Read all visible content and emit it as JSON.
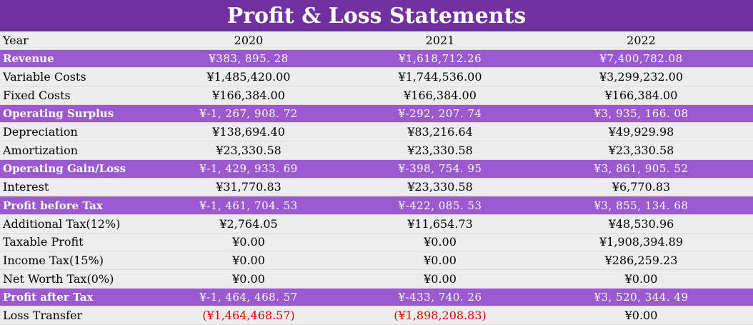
{
  "title": "Profit & Loss Statements",
  "header": {
    "label": "Year",
    "years": [
      "2020",
      "2021",
      "2022"
    ]
  },
  "rows": [
    {
      "label": "Revenue",
      "highlight": true,
      "values": [
        "¥383, 895. 28",
        "¥1,618,712.26",
        "¥7,400,782.08"
      ]
    },
    {
      "label": "Variable Costs",
      "highlight": false,
      "values": [
        "¥1,485,420.00",
        "¥1,744,536.00",
        "¥3,299,232.00"
      ]
    },
    {
      "label": "Fixed Costs",
      "highlight": false,
      "values": [
        "¥166,384.00",
        "¥166,384.00",
        "¥166,384.00"
      ]
    },
    {
      "label": "Operating Surplus",
      "highlight": true,
      "values": [
        "¥-1, 267, 908. 72",
        "¥-292, 207. 74",
        "¥3, 935, 166. 08"
      ]
    },
    {
      "label": "Depreciation",
      "highlight": false,
      "values": [
        "¥138,694.40",
        "¥83,216.64",
        "¥49,929.98"
      ]
    },
    {
      "label": "Amortization",
      "highlight": false,
      "values": [
        "¥23,330.58",
        "¥23,330.58",
        "¥23,330.58"
      ]
    },
    {
      "label": "Operating Gain/Loss",
      "highlight": true,
      "values": [
        "¥-1, 429, 933. 69",
        "¥-398, 754. 95",
        "¥3, 861, 905. 52"
      ]
    },
    {
      "label": "Interest",
      "highlight": false,
      "values": [
        "¥31,770.83",
        "¥23,330.58",
        "¥6,770.83"
      ]
    },
    {
      "label": "Profit before Tax",
      "highlight": true,
      "values": [
        "¥-1, 461, 704. 53",
        "¥-422, 085. 53",
        "¥3, 855, 134. 68"
      ]
    },
    {
      "label": "Additional Tax(12%)",
      "highlight": false,
      "values": [
        "¥2,764.05",
        "¥11,654.73",
        "¥48,530.96"
      ]
    },
    {
      "label": "Taxable Profit",
      "highlight": false,
      "values": [
        "¥0.00",
        "¥0.00",
        "¥1,908,394.89"
      ]
    },
    {
      "label": "Income Tax(15%)",
      "highlight": false,
      "values": [
        "¥0.00",
        "¥0.00",
        "¥286,259.23"
      ]
    },
    {
      "label": "Net Worth Tax(0%)",
      "highlight": false,
      "values": [
        "¥0.00",
        "¥0.00",
        "¥0.00"
      ]
    },
    {
      "label": "Profit after Tax",
      "highlight": true,
      "values": [
        "¥-1, 464, 468. 57",
        "¥-433, 740. 26",
        "¥3, 520, 344. 49"
      ]
    },
    {
      "label": "Loss Transfer",
      "highlight": false,
      "values": [
        "(¥1,464,468.57)",
        "(¥1,898,208.83)",
        "¥0.00"
      ],
      "negative": [
        true,
        true,
        false
      ]
    }
  ],
  "colors": {
    "title_bg": "#7030a0",
    "highlight_bg": "#9b59d0",
    "negative": "#e00000"
  }
}
